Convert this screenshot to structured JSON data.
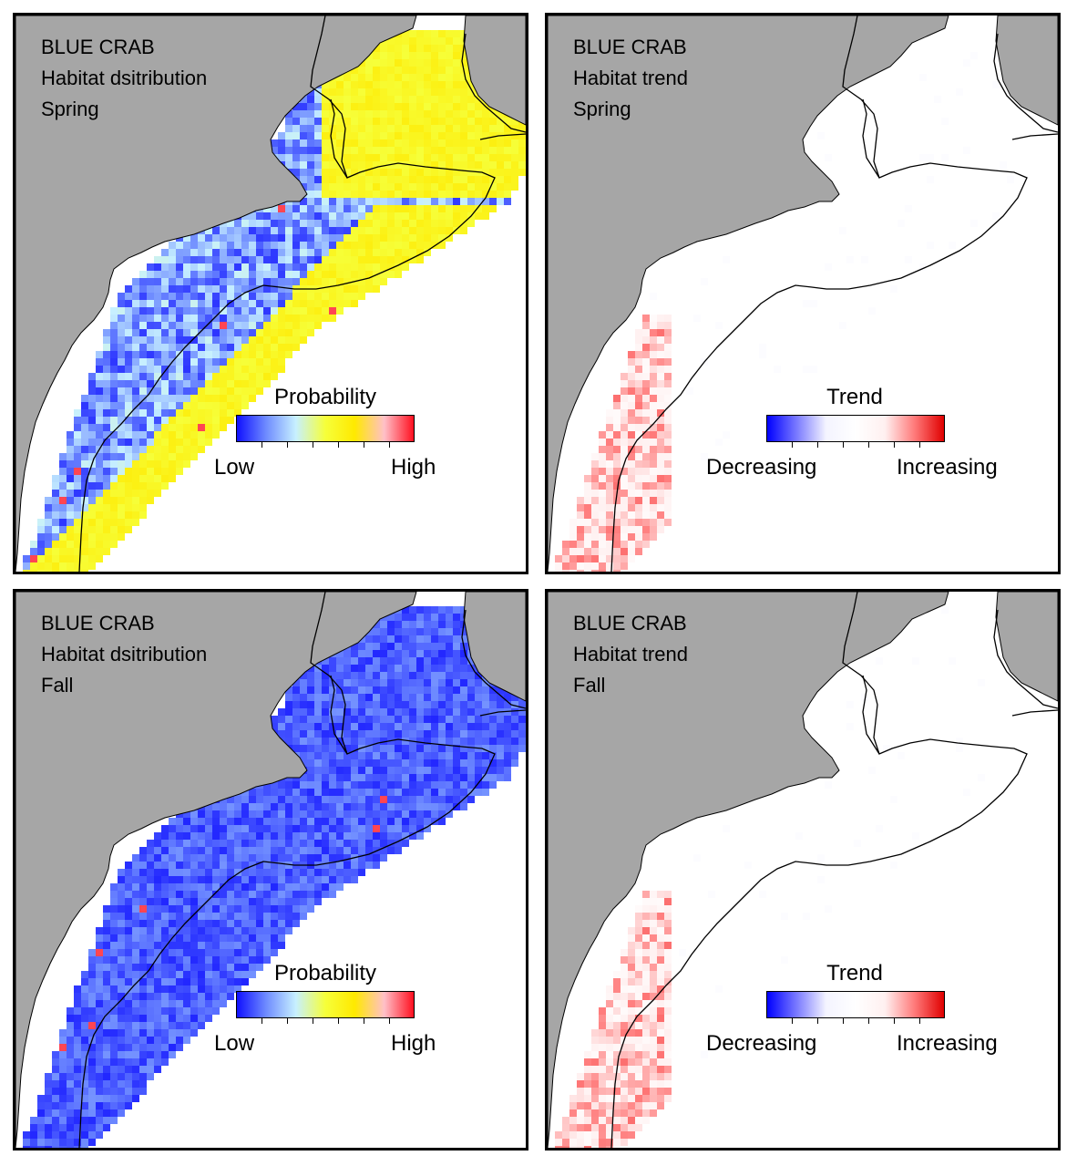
{
  "panels": [
    {
      "kind": "distribution",
      "season": "Spring",
      "title_lines": [
        "BLUE CRAB",
        "Habitat dsitribution",
        "Spring"
      ],
      "legend": {
        "title": "Probability",
        "low_label": "Low",
        "high_label": "High",
        "colors": [
          "#1010ff",
          "#6f8cff",
          "#c7f0ff",
          "#f6ff3a",
          "#ffe900",
          "#ffc0c8",
          "#ff1020"
        ]
      }
    },
    {
      "kind": "trend",
      "season": "Spring",
      "title_lines": [
        "BLUE CRAB",
        "Habitat trend",
        "Spring"
      ],
      "legend": {
        "title": "Trend",
        "low_label": "Decreasing",
        "high_label": "Increasing",
        "colors": [
          "#0000ff",
          "#7a7aff",
          "#f4f4ff",
          "#ffffff",
          "#fff0f0",
          "#ff7a7a",
          "#e00000"
        ]
      }
    },
    {
      "kind": "distribution",
      "season": "Fall",
      "title_lines": [
        "BLUE CRAB",
        "Habitat dsitribution",
        "Fall"
      ],
      "legend": {
        "title": "Probability",
        "low_label": "Low",
        "high_label": "High",
        "colors": [
          "#1010ff",
          "#6f8cff",
          "#c7f0ff",
          "#f6ff3a",
          "#ffe900",
          "#ffc0c8",
          "#ff1020"
        ]
      }
    },
    {
      "kind": "trend",
      "season": "Fall",
      "title_lines": [
        "BLUE CRAB",
        "Habitat trend",
        "Fall"
      ],
      "legend": {
        "title": "Trend",
        "low_label": "Decreasing",
        "high_label": "Increasing",
        "colors": [
          "#0000ff",
          "#7a7aff",
          "#f4f4ff",
          "#ffffff",
          "#fff0f0",
          "#ff7a7a",
          "#e00000"
        ]
      }
    }
  ],
  "colors": {
    "land": "#a6a6a6",
    "water": "#ffffff",
    "contour": "#000000"
  }
}
